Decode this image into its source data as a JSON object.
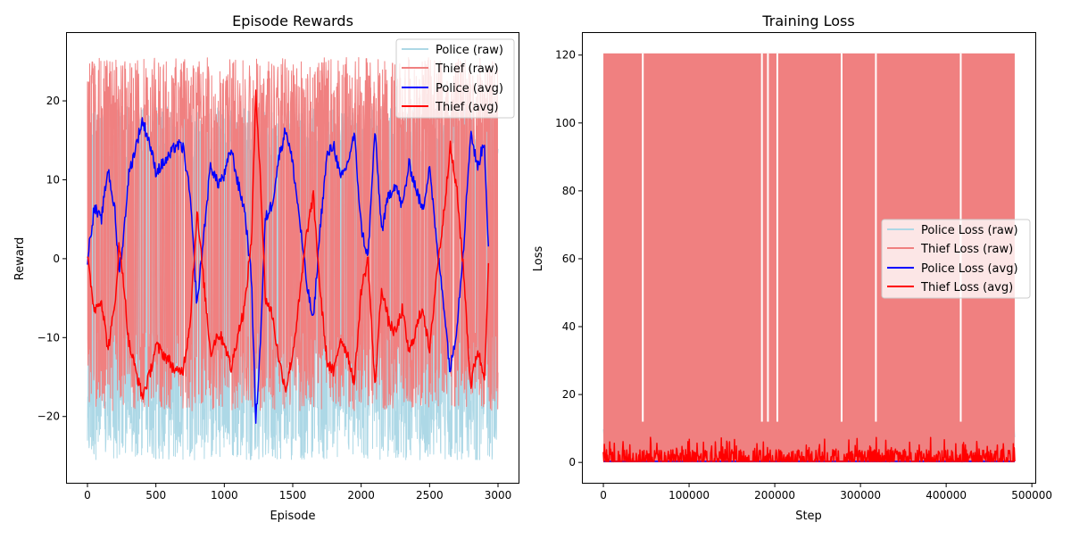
{
  "chart_data": [
    {
      "type": "line",
      "title": "Episode Rewards",
      "xlabel": "Episode",
      "ylabel": "Reward",
      "xlim": [
        -150,
        3150
      ],
      "ylim": [
        -28.4,
        28.6
      ],
      "xticks": [
        0,
        500,
        1000,
        1500,
        2000,
        2500,
        3000
      ],
      "yticks": [
        -20,
        -10,
        0,
        10,
        20
      ],
      "grid": false,
      "legend": "top-right",
      "series": [
        {
          "name": "Police (raw)",
          "color": "#add8e6",
          "style": "raw-noisy",
          "x": [
            0,
            3000
          ],
          "range": [
            -25.5,
            19.3
          ]
        },
        {
          "name": "Thief (raw)",
          "color": "#f08080",
          "style": "raw-noisy",
          "x": [
            0,
            3000
          ],
          "range": [
            -19.3,
            25.5
          ]
        },
        {
          "name": "Police (avg)",
          "color": "#0000ff",
          "x": [
            0,
            50,
            100,
            150,
            200,
            230,
            260,
            300,
            350,
            400,
            450,
            500,
            550,
            600,
            650,
            700,
            750,
            800,
            850,
            900,
            950,
            1000,
            1050,
            1100,
            1150,
            1200,
            1230,
            1260,
            1300,
            1350,
            1400,
            1450,
            1500,
            1550,
            1600,
            1650,
            1700,
            1750,
            1800,
            1850,
            1900,
            1950,
            2000,
            2050,
            2100,
            2150,
            2200,
            2250,
            2300,
            2350,
            2400,
            2450,
            2500,
            2550,
            2600,
            2650,
            2700,
            2750,
            2800,
            2850,
            2900,
            2930
          ],
          "y": [
            0,
            6.5,
            4.8,
            11.5,
            6,
            -1.5,
            2,
            10.5,
            14,
            17.5,
            15,
            11,
            12,
            13,
            14.5,
            14,
            8,
            -6,
            3,
            12,
            9.5,
            10.5,
            14,
            9.5,
            6,
            -3,
            -20.8,
            -12,
            5,
            7,
            13,
            16.5,
            12,
            5,
            -3,
            -8,
            4,
            13,
            14.5,
            10,
            12,
            15.8,
            4,
            0,
            16.3,
            3.5,
            8,
            9.5,
            6.5,
            12,
            9,
            6,
            12,
            2,
            -5,
            -14.3,
            -8.5,
            2,
            16.2,
            11.5,
            15,
            1.2
          ]
        },
        {
          "name": "Thief (avg)",
          "color": "#ff0000",
          "x": [
            0,
            50,
            100,
            150,
            200,
            230,
            260,
            300,
            350,
            400,
            450,
            500,
            550,
            600,
            650,
            700,
            750,
            800,
            850,
            900,
            950,
            1000,
            1050,
            1100,
            1150,
            1200,
            1230,
            1260,
            1300,
            1350,
            1400,
            1450,
            1500,
            1550,
            1600,
            1650,
            1700,
            1750,
            1800,
            1850,
            1900,
            1950,
            2000,
            2050,
            2100,
            2150,
            2200,
            2250,
            2300,
            2350,
            2400,
            2450,
            2500,
            2550,
            2600,
            2650,
            2700,
            2750,
            2800,
            2850,
            2900,
            2930
          ],
          "y": [
            0,
            -6.5,
            -5,
            -11.5,
            -6,
            1.5,
            -2,
            -10.5,
            -14,
            -17.5,
            -15,
            -11,
            -12,
            -13,
            -14.5,
            -14,
            -8,
            6,
            -3,
            -12,
            -9.5,
            -10.5,
            -14,
            -9.5,
            -6,
            3,
            20.8,
            12,
            -5,
            -7,
            -13,
            -16.5,
            -12,
            -5,
            3,
            8,
            -4,
            -13,
            -14.5,
            -10,
            -12,
            -15.8,
            -4,
            0,
            -16.3,
            -3.5,
            -8,
            -9.5,
            -6.5,
            -12,
            -9,
            -6,
            -12,
            -2,
            5,
            14.3,
            8.5,
            -2,
            -16.2,
            -11.5,
            -15,
            -1.2
          ]
        }
      ]
    },
    {
      "type": "line",
      "title": "Training Loss",
      "xlabel": "Step",
      "ylabel": "Loss",
      "xlim": [
        -24000,
        504000
      ],
      "ylim": [
        -6,
        126.5
      ],
      "xticks": [
        0,
        100000,
        200000,
        300000,
        400000,
        500000
      ],
      "yticks": [
        0,
        20,
        40,
        60,
        80,
        100,
        120
      ],
      "grid": false,
      "legend": "center-right",
      "series": [
        {
          "name": "Police Loss (raw)",
          "color": "#add8e6",
          "style": "raw-noisy",
          "x": [
            0,
            480000
          ],
          "range": [
            0,
            12
          ]
        },
        {
          "name": "Thief Loss (raw)",
          "color": "#f08080",
          "style": "raw-noisy",
          "x": [
            0,
            480000
          ],
          "range": [
            0,
            120.5
          ],
          "gaps": [
            46000,
            185000,
            192000,
            203000,
            278000,
            318000,
            417000
          ]
        },
        {
          "name": "Police Loss (avg)",
          "color": "#0000ff",
          "x": [
            0,
            480000
          ],
          "y": [
            0.3,
            0.3
          ]
        },
        {
          "name": "Thief Loss (avg)",
          "color": "#ff0000",
          "style": "avg-noisy",
          "x": [
            0,
            480000
          ],
          "range": [
            0,
            7.5
          ]
        }
      ]
    }
  ]
}
